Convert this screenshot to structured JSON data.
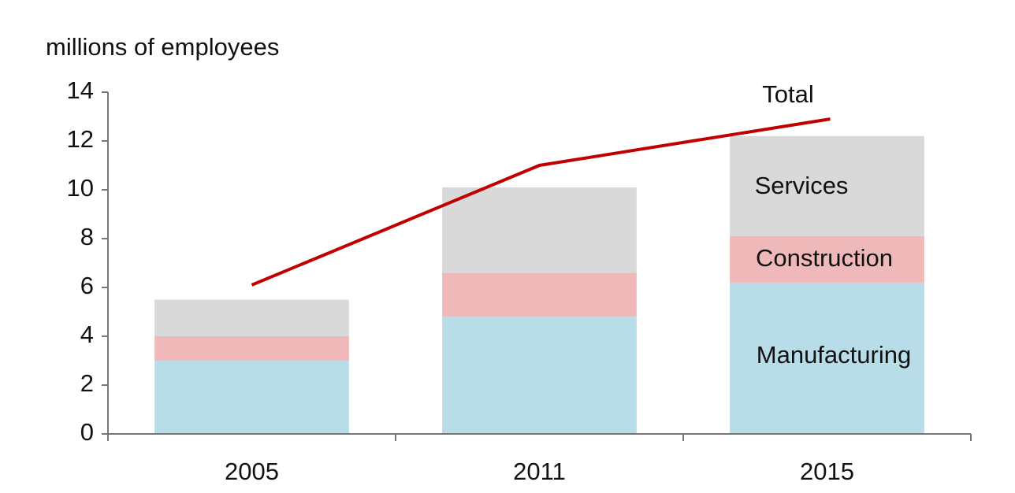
{
  "chart_data": {
    "type": "bar",
    "stacked": true,
    "ylabel": "millions of employees",
    "categories": [
      "2005",
      "2011",
      "2015"
    ],
    "series": [
      {
        "name": "Manufacturing",
        "color": "#b8dde8",
        "values": [
          3.0,
          4.8,
          6.2
        ]
      },
      {
        "name": "Construction",
        "color": "#f0b9b9",
        "values": [
          1.0,
          1.8,
          1.9
        ]
      },
      {
        "name": "Services",
        "color": "#d9d9d9",
        "values": [
          1.5,
          3.5,
          4.1
        ]
      },
      {
        "name": "Total",
        "type": "line",
        "color": "#c00000",
        "values": [
          6.1,
          11.0,
          12.9
        ]
      }
    ],
    "ylim": [
      0,
      14
    ],
    "yticks": [
      0,
      2,
      4,
      6,
      8,
      10,
      12,
      14
    ],
    "grid": false
  }
}
